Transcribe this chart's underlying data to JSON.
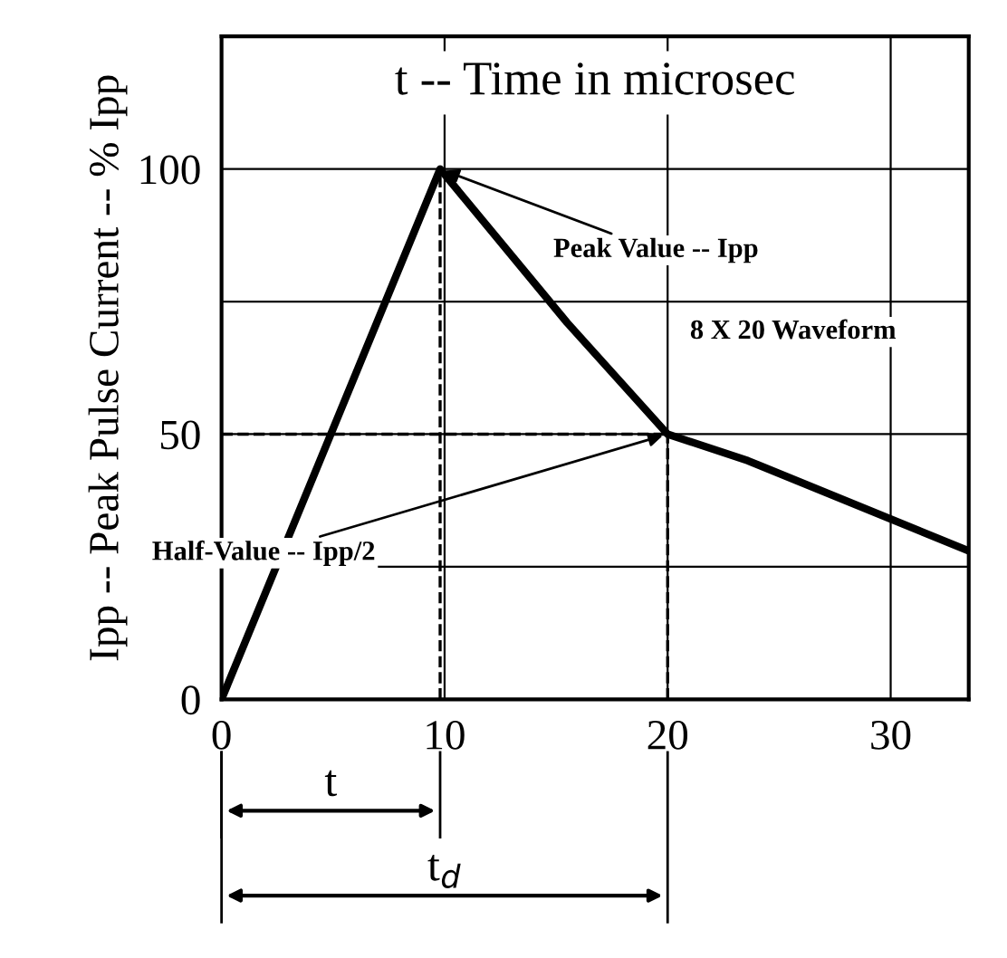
{
  "chart_data": {
    "type": "line",
    "ylabel": "Ipp -- Peak Pulse Current -- % Ipp",
    "x": [
      0,
      9.8,
      15.5,
      20,
      23.6,
      33.5
    ],
    "series": [
      {
        "color": "#000000",
        "values": [
          0,
          100,
          71,
          50,
          45,
          28
        ],
        "line_style": "solid"
      },
      {
        "color": "#000000",
        "x": [
          9.8,
          9.8
        ],
        "values": [
          0,
          100
        ],
        "line_style": "dashed"
      },
      {
        "color": "#000000",
        "x": [
          0,
          20
        ],
        "values": [
          50,
          50
        ],
        "line_style": "dashed"
      },
      {
        "color": "#000000",
        "x": [
          20,
          20
        ],
        "values": [
          0,
          50
        ],
        "line_style": "dashed"
      }
    ],
    "xlim": [
      0,
      33.5
    ],
    "xticks": [
      0,
      10,
      20,
      30
    ],
    "ylim": [
      0,
      125
    ],
    "yticks": [
      0,
      {
        "value": 25,
        "label": null
      },
      50,
      {
        "value": 75,
        "label": null
      },
      100
    ],
    "grid": true,
    "marker": "none",
    "annotations": [
      "t -- Time in microsec",
      {
        "text": "Peak Value -- Ipp",
        "x": 9.8,
        "y": 100
      },
      "8 X 20 Waveform",
      {
        "text": "Half-Value -- Ipp/2",
        "x": 20,
        "y": 50
      },
      "t",
      "t$_{d}$"
    ]
  }
}
